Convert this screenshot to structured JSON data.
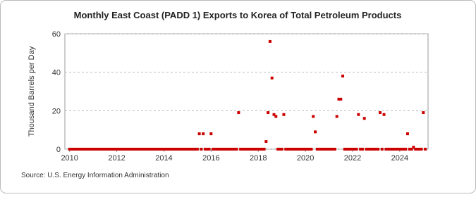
{
  "chart_data": {
    "type": "scatter",
    "title": "Monthly East Coast (PADD 1) Exports to Korea of Total Petroleum Products",
    "y_label": "Thousand Barrels per Day",
    "source": "Source: U.S. Energy Information Administration",
    "color": "#cc0000",
    "grid": true,
    "xlim": [
      2009.8,
      2025.2
    ],
    "ylim": [
      0,
      60
    ],
    "xticks": [
      2010,
      2012,
      2014,
      2016,
      2018,
      2020,
      2022,
      2024
    ],
    "yticks": [
      0,
      20,
      40,
      60
    ],
    "x": [
      2010,
      2010.083,
      2010.167,
      2010.25,
      2010.333,
      2010.417,
      2010.5,
      2010.583,
      2010.667,
      2010.75,
      2010.833,
      2010.917,
      2011,
      2011.083,
      2011.167,
      2011.25,
      2011.333,
      2011.417,
      2011.5,
      2011.583,
      2011.667,
      2011.75,
      2011.833,
      2011.917,
      2012,
      2012.083,
      2012.167,
      2012.25,
      2012.333,
      2012.417,
      2012.5,
      2012.583,
      2012.667,
      2012.75,
      2012.833,
      2012.917,
      2013,
      2013.083,
      2013.167,
      2013.25,
      2013.333,
      2013.417,
      2013.5,
      2013.583,
      2013.667,
      2013.75,
      2013.833,
      2013.917,
      2014,
      2014.083,
      2014.167,
      2014.25,
      2014.333,
      2014.417,
      2014.5,
      2014.583,
      2014.667,
      2014.75,
      2014.833,
      2014.917,
      2015,
      2015.083,
      2015.167,
      2015.25,
      2015.333,
      2015.417,
      2015.5,
      2015.583,
      2015.667,
      2015.75,
      2015.833,
      2015.917,
      2016,
      2016.083,
      2016.167,
      2016.25,
      2016.333,
      2016.417,
      2016.5,
      2016.583,
      2016.667,
      2016.75,
      2016.833,
      2016.917,
      2017,
      2017.083,
      2017.167,
      2017.25,
      2017.333,
      2017.417,
      2017.5,
      2017.583,
      2017.667,
      2017.75,
      2017.833,
      2017.917,
      2018,
      2018.083,
      2018.167,
      2018.25,
      2018.333,
      2018.417,
      2018.5,
      2018.583,
      2018.667,
      2018.75,
      2018.833,
      2018.917,
      2019,
      2019.083,
      2019.167,
      2019.25,
      2019.333,
      2019.417,
      2019.5,
      2019.583,
      2019.667,
      2019.75,
      2019.833,
      2019.917,
      2020,
      2020.083,
      2020.167,
      2020.25,
      2020.333,
      2020.417,
      2020.5,
      2020.583,
      2020.667,
      2020.75,
      2020.833,
      2020.917,
      2021,
      2021.083,
      2021.167,
      2021.25,
      2021.333,
      2021.417,
      2021.5,
      2021.583,
      2021.667,
      2021.75,
      2021.833,
      2021.917,
      2022,
      2022.083,
      2022.167,
      2022.25,
      2022.333,
      2022.417,
      2022.5,
      2022.583,
      2022.667,
      2022.75,
      2022.833,
      2022.917,
      2023,
      2023.083,
      2023.167,
      2023.25,
      2023.333,
      2023.417,
      2023.5,
      2023.583,
      2023.667,
      2023.75,
      2023.833,
      2023.917,
      2024,
      2024.083,
      2024.167,
      2024.25,
      2024.333,
      2024.417,
      2024.5,
      2024.583,
      2024.667,
      2024.75,
      2024.833,
      2024.917,
      2025,
      2025.083
    ],
    "values": [
      0,
      0,
      0,
      0,
      0,
      0,
      0,
      0,
      0,
      0,
      0,
      0,
      0,
      0,
      0,
      0,
      0,
      0,
      0,
      0,
      0,
      0,
      0,
      0,
      0,
      0,
      0,
      0,
      0,
      0,
      0,
      0,
      0,
      0,
      0,
      0,
      0,
      0,
      0,
      0,
      0,
      0,
      0,
      0,
      0,
      0,
      0,
      0,
      0,
      0,
      0,
      0,
      0,
      0,
      0,
      0,
      0,
      0,
      0,
      0,
      0,
      0,
      0,
      0,
      0,
      0,
      8,
      0,
      8,
      0,
      0,
      0,
      8,
      0,
      0,
      0,
      0,
      0,
      0,
      0,
      0,
      0,
      0,
      0,
      0,
      0,
      19,
      0,
      0,
      0,
      0,
      0,
      0,
      0,
      0,
      0,
      0,
      0,
      0,
      0,
      4,
      19,
      56,
      37,
      18,
      17,
      0,
      0,
      0,
      18,
      0,
      0,
      0,
      0,
      0,
      0,
      0,
      0,
      0,
      0,
      0,
      0,
      0,
      0,
      17,
      9,
      0,
      0,
      0,
      0,
      0,
      0,
      0,
      0,
      0,
      0,
      17,
      26,
      26,
      38,
      0,
      0,
      0,
      0,
      0,
      0,
      0,
      18,
      0,
      0,
      16,
      0,
      0,
      0,
      0,
      0,
      0,
      0,
      19,
      0,
      18,
      0,
      0,
      0,
      0,
      0,
      0,
      0,
      0,
      0,
      0,
      0,
      8,
      0,
      0,
      1,
      0,
      0,
      0,
      0,
      19,
      0
    ]
  }
}
